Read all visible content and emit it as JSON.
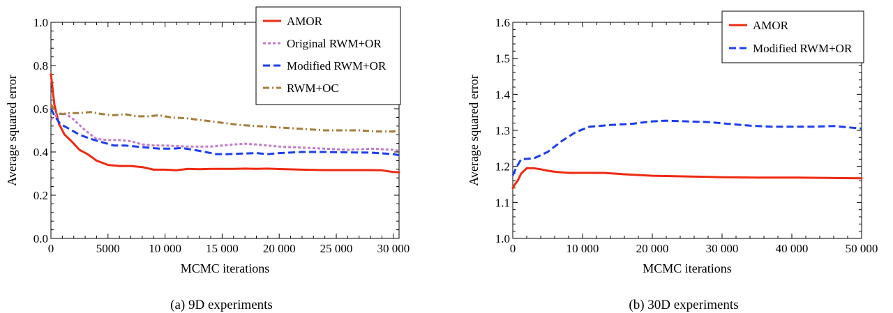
{
  "captions": {
    "left": "(a) 9D experiments",
    "right": "(b) 30D experiments"
  },
  "chart_data": [
    {
      "type": "line",
      "title": "",
      "xlabel": "MCMC iterations",
      "ylabel": "Average squared error",
      "xlim": [
        0,
        30500
      ],
      "ylim": [
        0,
        1.0
      ],
      "xticks": [
        0,
        5000,
        10000,
        15000,
        20000,
        25000,
        30000
      ],
      "xtick_labels": [
        "0",
        "5000",
        "10 000",
        "15 000",
        "20 000",
        "25 000",
        "30 000"
      ],
      "yticks": [
        0.0,
        0.2,
        0.4,
        0.6,
        0.8,
        1.0
      ],
      "ytick_labels": [
        "0.0",
        "0.2",
        "0.4",
        "0.6",
        "0.8",
        "1.0"
      ],
      "grid": false,
      "legend_position": "top-right",
      "series": [
        {
          "name": "AMOR",
          "color": "#ee2a12",
          "dash": "solid",
          "x": [
            0,
            300,
            700,
            1200,
            1800,
            2500,
            3200,
            4000,
            5000,
            6000,
            7000,
            8000,
            9000,
            10000,
            11000,
            12000,
            13000,
            14000,
            15000,
            16000,
            17000,
            18000,
            19000,
            20000,
            22000,
            24000,
            26000,
            28000,
            29000,
            30000,
            30500
          ],
          "y": [
            0.76,
            0.62,
            0.53,
            0.48,
            0.45,
            0.41,
            0.39,
            0.36,
            0.34,
            0.335,
            0.335,
            0.33,
            0.318,
            0.318,
            0.315,
            0.322,
            0.32,
            0.322,
            0.322,
            0.322,
            0.323,
            0.322,
            0.323,
            0.321,
            0.318,
            0.316,
            0.316,
            0.316,
            0.315,
            0.307,
            0.306
          ]
        },
        {
          "name": "Original RWM+OR",
          "color": "#c27bc8",
          "dash": "dotted",
          "x": [
            0,
            500,
            1000,
            1500,
            2000,
            3000,
            4000,
            5000,
            6000,
            7000,
            8000,
            9000,
            10000,
            12000,
            14000,
            16000,
            17000,
            18000,
            20000,
            22000,
            24000,
            26000,
            28000,
            30000,
            30500
          ],
          "y": [
            0.55,
            0.57,
            0.58,
            0.57,
            0.55,
            0.5,
            0.46,
            0.455,
            0.455,
            0.45,
            0.435,
            0.43,
            0.43,
            0.425,
            0.425,
            0.435,
            0.438,
            0.435,
            0.425,
            0.42,
            0.415,
            0.41,
            0.415,
            0.41,
            0.405
          ]
        },
        {
          "name": "Modified RWM+OR",
          "color": "#1c3ef0",
          "dash": "dashed",
          "x": [
            0,
            300,
            800,
            1500,
            2500,
            3500,
            4500,
            5500,
            6500,
            7500,
            8500,
            9500,
            10500,
            11500,
            12500,
            13500,
            14500,
            15500,
            17000,
            18000,
            19000,
            20000,
            22000,
            24000,
            26000,
            28000,
            30000,
            30500
          ],
          "y": [
            0.6,
            0.57,
            0.53,
            0.51,
            0.48,
            0.46,
            0.445,
            0.43,
            0.43,
            0.425,
            0.42,
            0.415,
            0.415,
            0.418,
            0.41,
            0.4,
            0.39,
            0.39,
            0.393,
            0.395,
            0.39,
            0.395,
            0.4,
            0.4,
            0.398,
            0.397,
            0.39,
            0.385
          ]
        },
        {
          "name": "RWM+OC",
          "color": "#a67c3a",
          "dash": "dashdot",
          "x": [
            0,
            500,
            1000,
            1500,
            2500,
            3500,
            4500,
            5500,
            6500,
            7500,
            8500,
            9500,
            10500,
            12000,
            13500,
            15000,
            16500,
            18000,
            19500,
            21000,
            22500,
            24000,
            25500,
            27000,
            28500,
            30000,
            30500
          ],
          "y": [
            0.62,
            0.58,
            0.575,
            0.58,
            0.58,
            0.585,
            0.575,
            0.57,
            0.575,
            0.565,
            0.565,
            0.57,
            0.56,
            0.555,
            0.545,
            0.535,
            0.525,
            0.52,
            0.515,
            0.51,
            0.505,
            0.5,
            0.5,
            0.5,
            0.495,
            0.495,
            0.5
          ]
        }
      ]
    },
    {
      "type": "line",
      "title": "",
      "xlabel": "MCMC iterations",
      "ylabel": "Average squared error",
      "xlim": [
        0,
        50000
      ],
      "ylim": [
        1.0,
        1.6
      ],
      "xticks": [
        0,
        10000,
        20000,
        30000,
        40000,
        50000
      ],
      "xtick_labels": [
        "0",
        "10 000",
        "20 000",
        "30 000",
        "40 000",
        "50 000"
      ],
      "yticks": [
        1.0,
        1.1,
        1.2,
        1.3,
        1.4,
        1.5,
        1.6
      ],
      "ytick_labels": [
        "1.0",
        "1.1",
        "1.2",
        "1.3",
        "1.4",
        "1.5",
        "1.6"
      ],
      "grid": false,
      "legend_position": "top-right",
      "series": [
        {
          "name": "AMOR",
          "color": "#ee2a12",
          "dash": "solid",
          "x": [
            0,
            300,
            700,
            1200,
            2000,
            3000,
            4000,
            5000,
            6000,
            8000,
            10000,
            13000,
            16000,
            20000,
            25000,
            30000,
            35000,
            40000,
            45000,
            50000
          ],
          "y": [
            1.14,
            1.15,
            1.16,
            1.18,
            1.195,
            1.195,
            1.192,
            1.188,
            1.185,
            1.182,
            1.182,
            1.182,
            1.178,
            1.174,
            1.172,
            1.17,
            1.169,
            1.169,
            1.168,
            1.167
          ]
        },
        {
          "name": "Modified RWM+OR",
          "color": "#1c3ef0",
          "dash": "dashed",
          "x": [
            0,
            600,
            1200,
            3000,
            5000,
            7000,
            9000,
            11000,
            14000,
            17000,
            20000,
            22000,
            25000,
            28000,
            31000,
            34000,
            37000,
            40000,
            43000,
            46000,
            50000
          ],
          "y": [
            1.175,
            1.2,
            1.22,
            1.222,
            1.24,
            1.27,
            1.295,
            1.31,
            1.315,
            1.318,
            1.325,
            1.327,
            1.325,
            1.323,
            1.318,
            1.313,
            1.31,
            1.31,
            1.31,
            1.312,
            1.305
          ]
        }
      ]
    }
  ]
}
